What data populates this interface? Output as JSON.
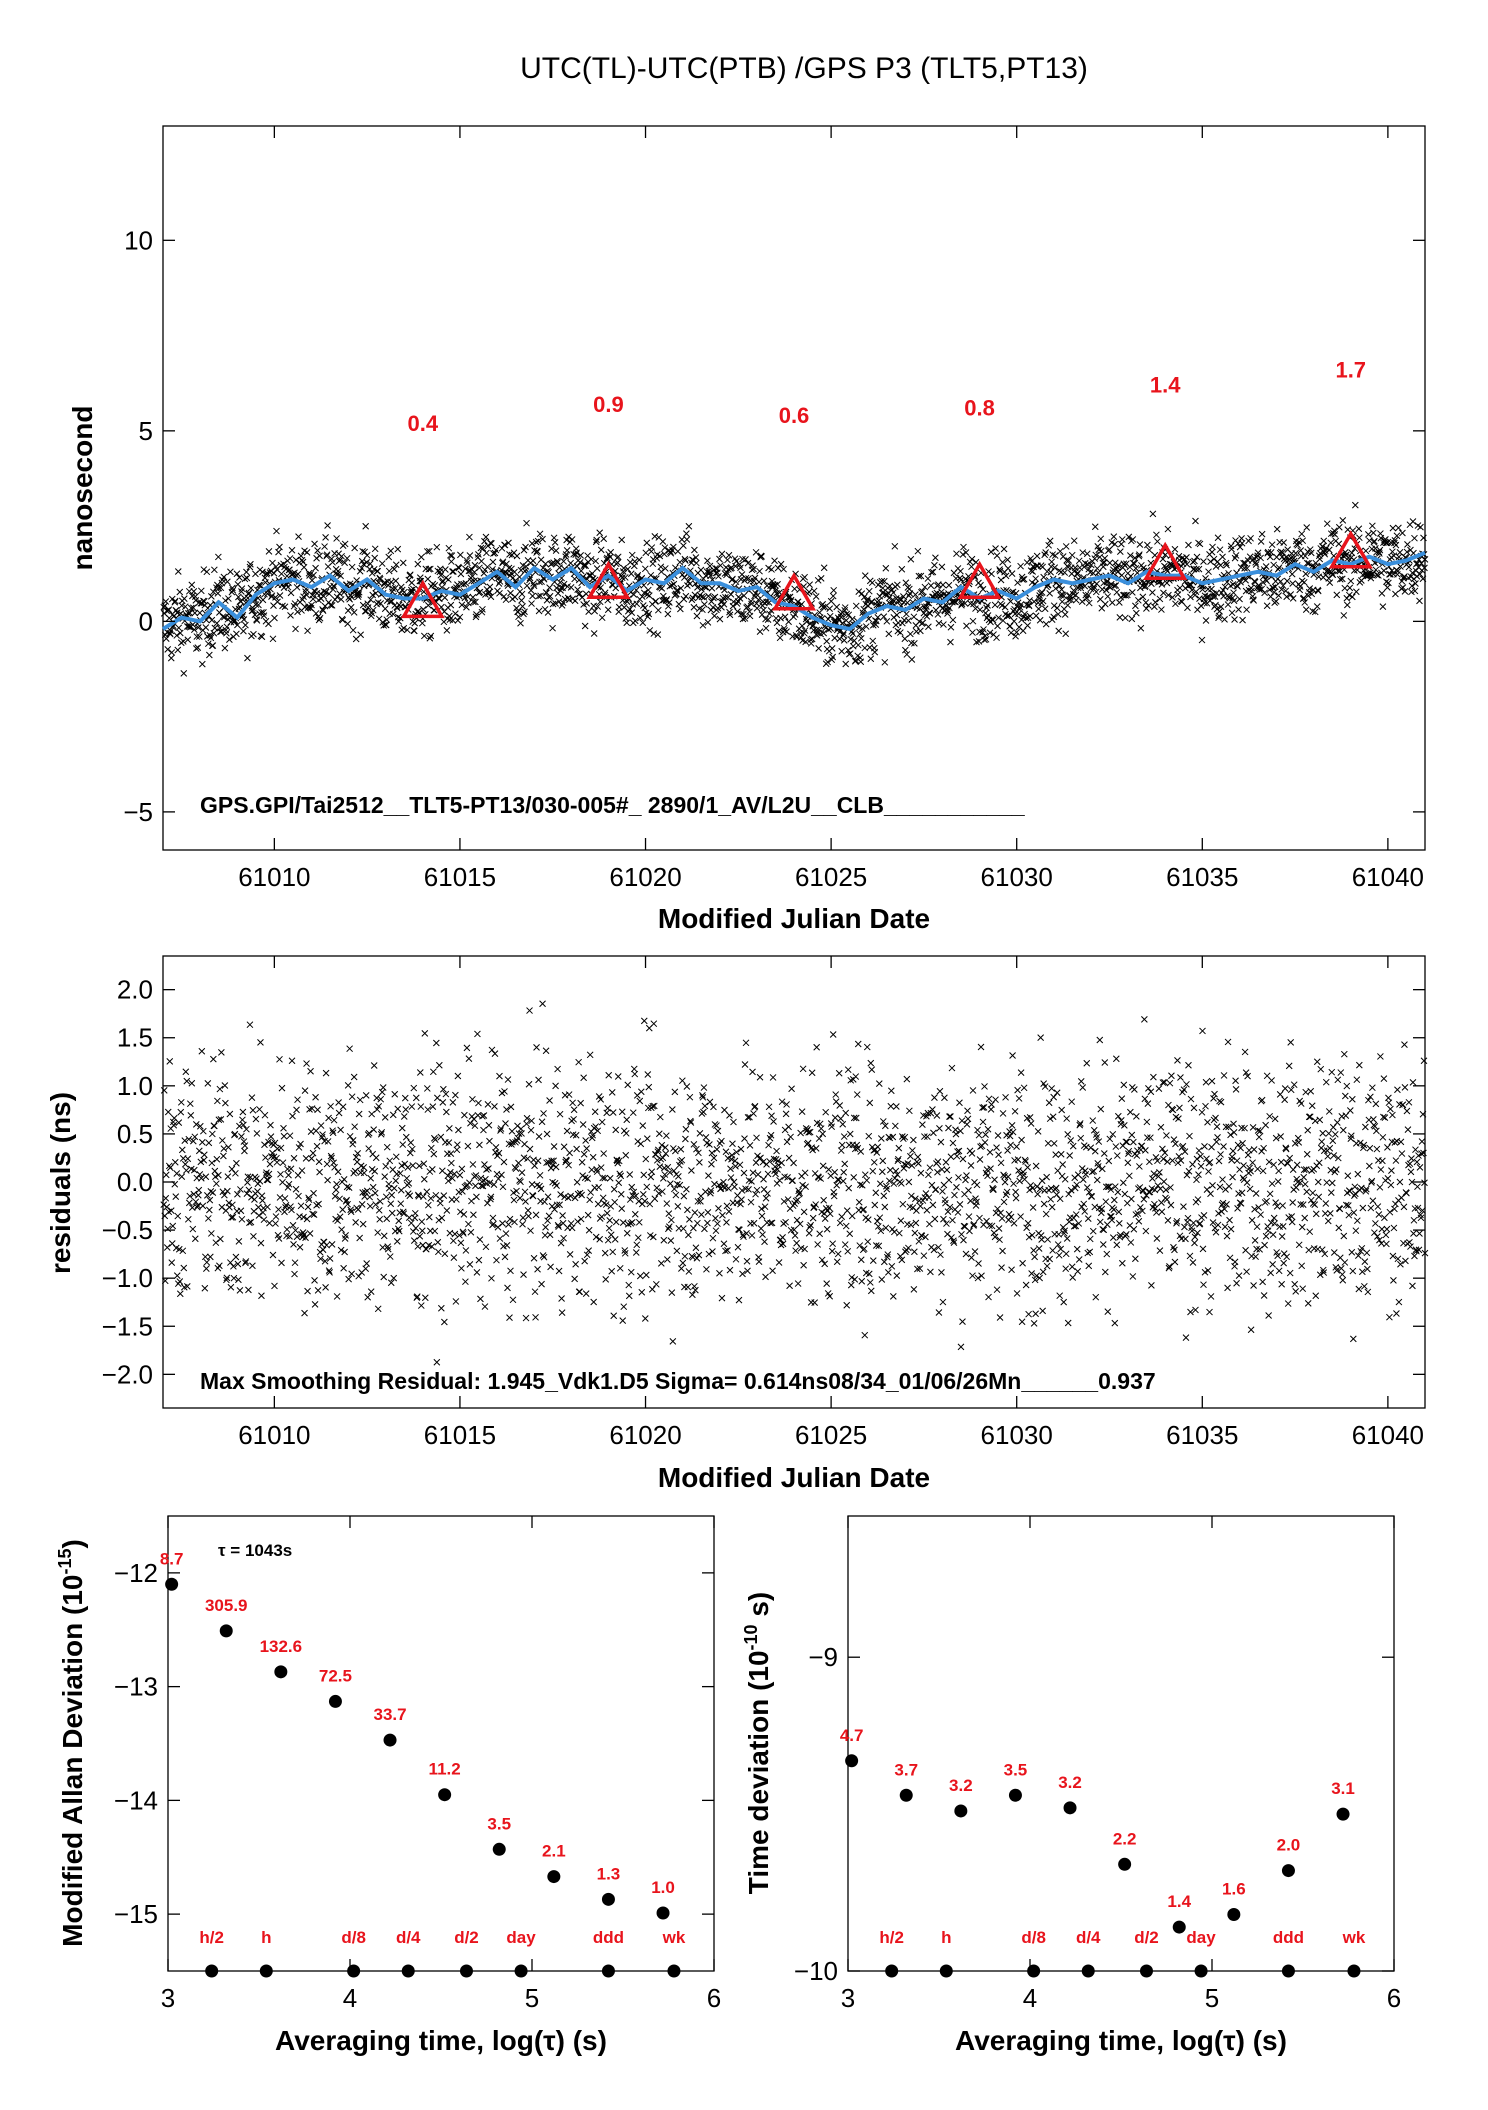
{
  "page": {
    "title": "UTC(TL)-UTC(PTB)  /GPS  P3  (TLT5,PT13)"
  },
  "colors": {
    "smooth_line": "#3a8fdc",
    "highlight": "#e8141c",
    "points": "#000000"
  },
  "chart_data": [
    {
      "id": "timeseries",
      "type": "scatter",
      "xlabel": "Modified Julian Date",
      "ylabel": "nanosecond",
      "xlim": [
        61007,
        61041
      ],
      "ylim": [
        -6,
        13
      ],
      "xticks": [
        61010,
        61015,
        61020,
        61025,
        61030,
        61035,
        61040
      ],
      "yticks": [
        -5,
        0,
        5,
        10
      ],
      "ytick_labels": [
        "−5",
        "0",
        "5",
        "10"
      ],
      "annotation": "GPS.GPI/Tai2512__TLT5-PT13/030-005#_  2890/1_AV/L2U__CLB___________",
      "scatter_description": "dense cloud of x markers around the smoothed curve, spread about ±0.8 ns",
      "smoothed_series": {
        "x": [
          61007,
          61007.5,
          61008,
          61008.5,
          61009,
          61009.5,
          61010,
          61010.5,
          61011,
          61011.5,
          61012,
          61012.5,
          61013,
          61013.5,
          61014,
          61014.5,
          61015,
          61015.5,
          61016,
          61016.5,
          61017,
          61017.5,
          61018,
          61018.5,
          61019,
          61019.5,
          61020,
          61020.5,
          61021,
          61021.5,
          61022,
          61022.5,
          61023,
          61023.5,
          61024,
          61024.5,
          61025,
          61025.5,
          61026,
          61026.5,
          61027,
          61027.5,
          61028,
          61028.5,
          61029,
          61029.5,
          61030,
          61030.5,
          61031,
          61031.5,
          61032,
          61032.5,
          61033,
          61033.5,
          61034,
          61034.5,
          61035,
          61035.5,
          61036,
          61036.5,
          61037,
          61037.5,
          61038,
          61038.5,
          61039,
          61039.5,
          61040,
          61040.5,
          61041
        ],
        "y": [
          -0.2,
          0.1,
          0.0,
          0.5,
          0.1,
          0.7,
          1.0,
          1.1,
          0.9,
          1.2,
          0.8,
          1.1,
          0.7,
          0.6,
          0.6,
          0.8,
          0.7,
          1.0,
          1.3,
          0.9,
          1.4,
          1.1,
          1.4,
          0.9,
          1.2,
          0.8,
          1.1,
          1.0,
          1.4,
          1.0,
          1.0,
          0.8,
          0.9,
          0.5,
          0.4,
          0.1,
          -0.1,
          -0.2,
          0.2,
          0.4,
          0.3,
          0.6,
          0.5,
          0.9,
          0.6,
          0.8,
          0.6,
          0.9,
          1.1,
          1.0,
          1.1,
          1.2,
          1.0,
          1.3,
          1.2,
          1.2,
          1.0,
          1.1,
          1.2,
          1.3,
          1.2,
          1.5,
          1.3,
          1.6,
          1.5,
          1.7,
          1.5,
          1.6,
          1.8
        ]
      },
      "markers": {
        "x": [
          61014,
          61019,
          61024,
          61029,
          61034,
          61039
        ],
        "y": [
          0.5,
          1.0,
          0.7,
          1.0,
          1.5,
          1.8
        ],
        "labels": [
          "0.4",
          "0.9",
          "0.6",
          "0.8",
          "1.4",
          "1.7"
        ],
        "label_y": [
          5.0,
          5.5,
          5.2,
          5.4,
          6.0,
          6.4
        ]
      }
    },
    {
      "id": "residuals",
      "type": "scatter",
      "xlabel": "Modified Julian Date",
      "ylabel": "residuals (ns)",
      "xlim": [
        61007,
        61041
      ],
      "ylim": [
        -2.35,
        2.35
      ],
      "xticks": [
        61010,
        61015,
        61020,
        61025,
        61030,
        61035,
        61040
      ],
      "yticks": [
        -2.0,
        -1.5,
        -1.0,
        -0.5,
        0.0,
        0.5,
        1.0,
        1.5,
        2.0
      ],
      "ytick_labels": [
        "−2.0",
        "−1.5",
        "−1.0",
        "−0.5",
        "0.0",
        "0.5",
        "1.0",
        "1.5",
        "2.0"
      ],
      "annotation": "Max Smoothing Residual: 1.945_Vdk1.D5  Sigma= 0.614ns08/34_01/06/26Mn______0.937",
      "scatter_description": "x markers scattered around 0 with sigma about 0.6 ns"
    },
    {
      "id": "mdev",
      "type": "scatter",
      "xlabel": "Averaging time, log(τ) (s)",
      "ylabel_main": "Modified Allan Deviation (10",
      "ylabel_exp": "-15",
      "ylabel_tail": ")",
      "xlim": [
        3,
        6
      ],
      "ylim": [
        -15.5,
        -11.5
      ],
      "xticks": [
        3,
        4,
        5,
        6
      ],
      "yticks": [
        -15,
        -14,
        -13,
        -12
      ],
      "ytick_labels": [
        "−15",
        "−14",
        "−13",
        "−12"
      ],
      "tau_note": "τ = 1043s",
      "points": {
        "x": [
          3.02,
          3.32,
          3.62,
          3.92,
          4.22,
          4.52,
          4.82,
          5.12,
          5.42,
          5.72
        ],
        "y": [
          -12.1,
          -12.51,
          -12.87,
          -13.13,
          -13.47,
          -13.95,
          -14.43,
          -14.67,
          -14.87,
          -14.99
        ],
        "labels": [
          "8.7",
          "305.9",
          "132.6",
          "72.5",
          "33.7",
          "11.2",
          "3.5",
          "2.1",
          "1.3",
          "1.0"
        ]
      },
      "reference_marks": {
        "x": [
          3.24,
          3.54,
          4.02,
          4.32,
          4.64,
          4.94,
          5.42,
          5.78
        ],
        "labels": [
          "h/2",
          "h",
          "d/8",
          "d/4",
          "d/2",
          "day",
          "ddd",
          "wk"
        ]
      }
    },
    {
      "id": "tdev",
      "type": "scatter",
      "xlabel": "Averaging time, log(τ) (s)",
      "ylabel_main": "Time deviation (10",
      "ylabel_exp": "-10",
      "ylabel_tail": " s)",
      "xlim": [
        3,
        6
      ],
      "ylim": [
        -10,
        -8.55
      ],
      "xticks": [
        3,
        4,
        5,
        6
      ],
      "yticks": [
        -10,
        -9
      ],
      "ytick_labels": [
        "−10",
        "−9"
      ],
      "points": {
        "x": [
          3.02,
          3.32,
          3.62,
          3.92,
          4.22,
          4.52,
          4.82,
          5.12,
          5.42,
          5.72
        ],
        "y": [
          -9.33,
          -9.44,
          -9.49,
          -9.44,
          -9.48,
          -9.66,
          -9.86,
          -9.82,
          -9.68,
          -9.5
        ],
        "labels": [
          "4.7",
          "3.7",
          "3.2",
          "3.5",
          "3.2",
          "2.2",
          "1.4",
          "1.6",
          "2.0",
          "3.1"
        ]
      },
      "reference_marks": {
        "x": [
          3.24,
          3.54,
          4.02,
          4.32,
          4.64,
          4.94,
          5.42,
          5.78
        ],
        "labels": [
          "h/2",
          "h",
          "d/8",
          "d/4",
          "d/2",
          "day",
          "ddd",
          "wk"
        ]
      }
    }
  ]
}
